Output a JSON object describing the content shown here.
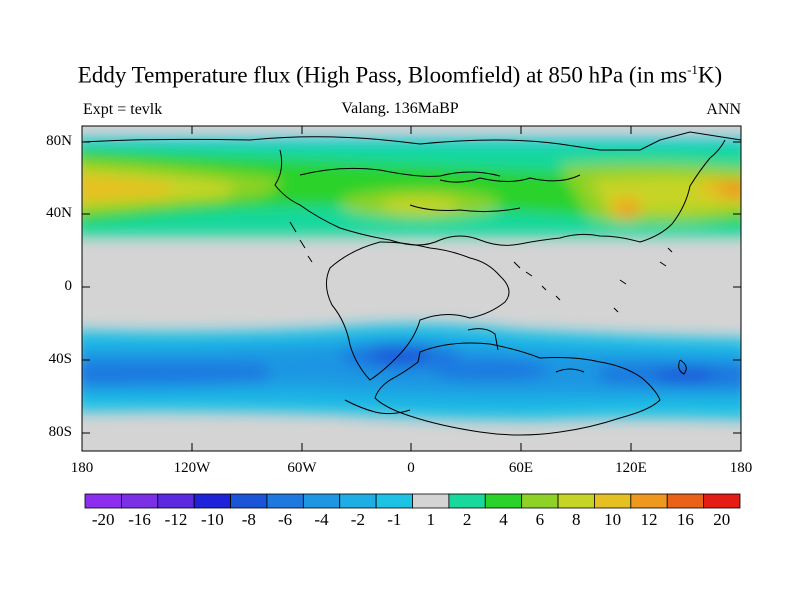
{
  "title_main": "Eddy Temperature flux (High Pass, Bloomfield) at 850 hPa (in ms",
  "title_sup": "-1",
  "title_end": "K)",
  "subtitle": "Valang. 136MaBP",
  "left_label": "Expt = tevlk",
  "right_label": "ANN",
  "y_ticks": [
    "80N",
    "40N",
    "0",
    "40S",
    "80S"
  ],
  "x_ticks": [
    "180",
    "120W",
    "60W",
    "0",
    "60E",
    "120E",
    "180"
  ],
  "colorbar": {
    "labels": [
      "-20",
      "-16",
      "-12",
      "-10",
      "-8",
      "-6",
      "-4",
      "-2",
      "-1",
      "1",
      "2",
      "4",
      "6",
      "8",
      "10",
      "12",
      "16",
      "20"
    ],
    "colors": [
      "#8c2ef0",
      "#7b30e6",
      "#5b2ae0",
      "#1e22d8",
      "#1a55d8",
      "#1e78e0",
      "#1e96e2",
      "#1eaee4",
      "#1ec2e4",
      "#d4d4d4",
      "#18d89c",
      "#2ad22a",
      "#8ed228",
      "#c6d428",
      "#e6c022",
      "#ee9820",
      "#ea6218",
      "#e41c14"
    ]
  },
  "colors": {
    "land_default": "#d4d4d4",
    "coastline": "#000000"
  }
}
